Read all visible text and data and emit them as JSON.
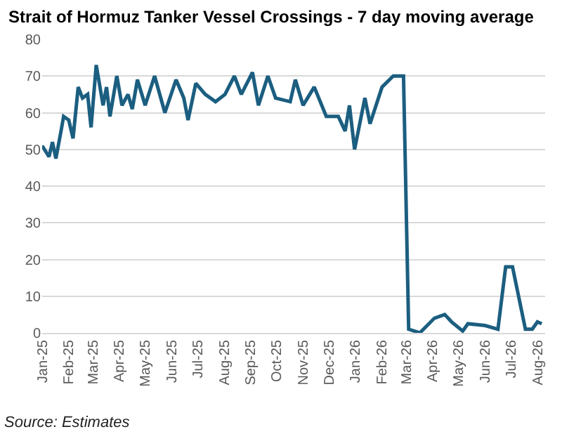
{
  "chart_data": {
    "type": "line",
    "title": "Strait of Hormuz Tanker Vessel Crossings - 7 day moving average",
    "annotations": [
      "Source: Estimates"
    ],
    "x": [
      "2025-01-01",
      "2025-01-09",
      "2025-01-13",
      "2025-01-17",
      "2025-01-23",
      "2025-01-26",
      "2025-02-01",
      "2025-02-06",
      "2025-02-12",
      "2025-02-17",
      "2025-02-23",
      "2025-02-27",
      "2025-03-05",
      "2025-03-13",
      "2025-03-17",
      "2025-03-21",
      "2025-03-29",
      "2025-04-04",
      "2025-04-11",
      "2025-04-16",
      "2025-04-22",
      "2025-05-01",
      "2025-05-12",
      "2025-05-24",
      "2025-06-06",
      "2025-06-15",
      "2025-06-20",
      "2025-06-29",
      "2025-07-10",
      "2025-07-22",
      "2025-08-02",
      "2025-08-13",
      "2025-08-21",
      "2025-09-03",
      "2025-09-10",
      "2025-09-21",
      "2025-09-30",
      "2025-10-17",
      "2025-10-23",
      "2025-11-01",
      "2025-11-14",
      "2025-11-28",
      "2025-12-12",
      "2025-12-20",
      "2025-12-25",
      "2025-12-31",
      "2026-01-12",
      "2026-01-18",
      "2026-02-01",
      "2026-02-14",
      "2026-02-26",
      "2026-03-04",
      "2026-03-17",
      "2026-04-03",
      "2026-04-15",
      "2026-04-23",
      "2026-05-06",
      "2026-05-12",
      "2026-06-01",
      "2026-06-16",
      "2026-06-25",
      "2026-07-03",
      "2026-07-18",
      "2026-07-26",
      "2026-08-01",
      "2026-08-06"
    ],
    "series": [
      {
        "color": "#1b5e80",
        "values": [
          51,
          48,
          52,
          47.5,
          55,
          59,
          58,
          53,
          67,
          64,
          65,
          56,
          73,
          62,
          67,
          59,
          70,
          62,
          65,
          61,
          69,
          62,
          70,
          60,
          69,
          64,
          58,
          68,
          65,
          63,
          65,
          70,
          65,
          71,
          62,
          70,
          64,
          63,
          69,
          62,
          67,
          59,
          59,
          55,
          62,
          50,
          64,
          57,
          67,
          70,
          70,
          1,
          0,
          4,
          5,
          3,
          0.5,
          2.5,
          2,
          1,
          18,
          18,
          1,
          1,
          3,
          2.5
        ]
      }
    ],
    "xlim": [
      "2025-01-01",
      "2026-08-10"
    ],
    "xticks": [
      {
        "value": "2025-01-01",
        "label": "Jan-25"
      },
      {
        "value": "2025-02-01",
        "label": "Feb-25"
      },
      {
        "value": "2025-03-01",
        "label": "Mar-25"
      },
      {
        "value": "2025-04-01",
        "label": "Apr-25"
      },
      {
        "value": "2025-05-01",
        "label": "May-25"
      },
      {
        "value": "2025-06-01",
        "label": "Jun-25"
      },
      {
        "value": "2025-07-01",
        "label": "Jul-25"
      },
      {
        "value": "2025-08-01",
        "label": "Aug-25"
      },
      {
        "value": "2025-09-01",
        "label": "Sep-25"
      },
      {
        "value": "2025-10-01",
        "label": "Oct-25"
      },
      {
        "value": "2025-11-01",
        "label": "Nov-25"
      },
      {
        "value": "2025-12-01",
        "label": "Dec-25"
      },
      {
        "value": "2026-01-01",
        "label": "Jan-26"
      },
      {
        "value": "2026-02-01",
        "label": "Feb-26"
      },
      {
        "value": "2026-03-01",
        "label": "Mar-26"
      },
      {
        "value": "2026-04-01",
        "label": "Apr-26"
      },
      {
        "value": "2026-05-01",
        "label": "May-26"
      },
      {
        "value": "2026-06-01",
        "label": "Jun-26"
      },
      {
        "value": "2026-07-01",
        "label": "Jul-26"
      },
      {
        "value": "2026-08-01",
        "label": "Aug-26"
      }
    ],
    "ylim": [
      0,
      80
    ],
    "yticks": [
      0,
      10,
      20,
      30,
      40,
      50,
      60,
      70,
      80
    ],
    "grid": "y"
  }
}
